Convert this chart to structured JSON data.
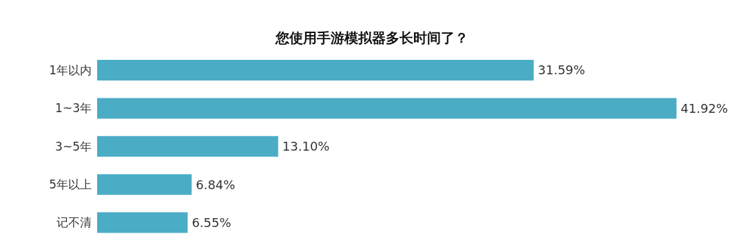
{
  "chart_data": {
    "type": "bar",
    "orientation": "horizontal",
    "title": "您使用手游模拟器多长时间了？",
    "categories": [
      "1年以内",
      "1~3年",
      "3~5年",
      "5年以上",
      "记不清"
    ],
    "values": [
      31.59,
      41.92,
      13.1,
      6.84,
      6.55
    ],
    "value_labels": [
      "31.59%",
      "41.92%",
      "13.10%",
      "6.84%",
      "6.55%"
    ],
    "color": "#4bacc6",
    "tick_labels": "y",
    "grid": false,
    "legend": false
  }
}
